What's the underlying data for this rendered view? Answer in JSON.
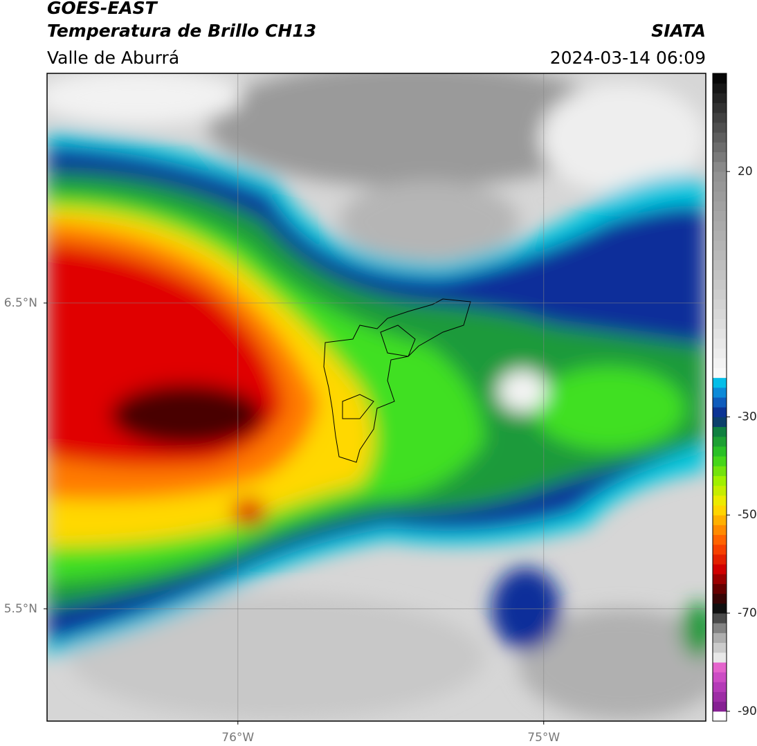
{
  "map": {
    "title": "GOES-EAST",
    "subtitle": "Temperatura de Brillo CH13",
    "region": "Valle de Aburrá",
    "source": "SIATA",
    "datetime": "2024-03-14 06:09",
    "xlim": [
      -76.624,
      -74.47
    ],
    "ylim": [
      5.133,
      7.251
    ],
    "xticks": [
      {
        "value": -76,
        "label": "76°W"
      },
      {
        "value": -75,
        "label": "75°W"
      }
    ],
    "yticks": [
      {
        "value": 6.5,
        "label": "6.5°N"
      },
      {
        "value": 5.5,
        "label": "5.5°N"
      }
    ],
    "grid": true,
    "colorbar": {
      "lim": [
        -92,
        40
      ],
      "ticks": [
        20,
        -30,
        -50,
        -70,
        -90
      ]
    }
  }
}
